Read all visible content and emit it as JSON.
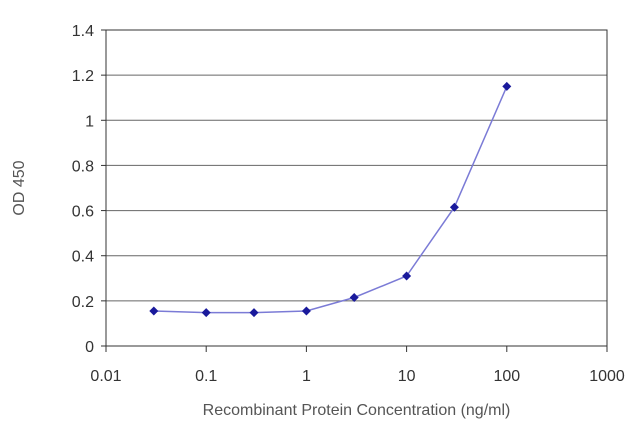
{
  "chart_data": {
    "type": "line",
    "title": "",
    "xlabel": "Recombinant Protein Concentration (ng/ml)",
    "ylabel": "OD 450",
    "x_scale": "log",
    "xlim": [
      0.01,
      1000
    ],
    "ylim": [
      0,
      1.4
    ],
    "x_ticks": [
      0.01,
      0.1,
      1,
      10,
      100,
      1000
    ],
    "x_tick_labels": [
      "0.01",
      "0.1",
      "1",
      "10",
      "100",
      "1000"
    ],
    "y_ticks": [
      0,
      0.2,
      0.4,
      0.6,
      0.8,
      1,
      1.2,
      1.4
    ],
    "y_tick_labels": [
      "0",
      "0.2",
      "0.4",
      "0.6",
      "0.8",
      "1",
      "1.2",
      "1.4"
    ],
    "grid": "horizontal",
    "legend": "none",
    "series": [
      {
        "x": [
          0.03,
          0.1,
          0.3,
          1,
          3,
          10,
          30,
          100
        ],
        "y": [
          0.155,
          0.148,
          0.148,
          0.155,
          0.215,
          0.31,
          0.615,
          1.15
        ]
      }
    ],
    "colors": {
      "line": "#7b7bd6",
      "marker": "#1a1a9c",
      "grid": "#666666",
      "axis": "#333333"
    }
  }
}
